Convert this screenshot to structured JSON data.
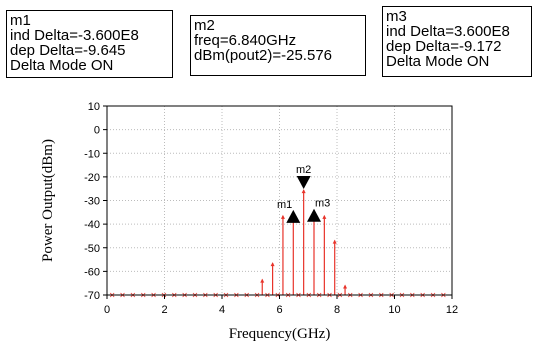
{
  "markers": [
    {
      "id": "m1",
      "lines": [
        "ind Delta=-3.600E8",
        "dep Delta=-9.645",
        "Delta Mode ON"
      ],
      "x": 6.48,
      "y": -35.22
    },
    {
      "id": "m2",
      "lines": [
        "freq=6.840GHz",
        "dBm(pout2)=-25.576"
      ],
      "x": 6.84,
      "y": -25.576
    },
    {
      "id": "m3",
      "lines": [
        "ind Delta=3.600E8",
        "dep Delta=-9.172",
        "Delta Mode ON"
      ],
      "x": 7.2,
      "y": -34.748
    }
  ],
  "chart_data": {
    "type": "bar",
    "title": "",
    "xlabel": "Frequency(GHz)",
    "ylabel": "Power Output(dBm)",
    "xlim": [
      0,
      12
    ],
    "ylim": [
      -70,
      10
    ],
    "x_ticks": [
      0,
      2,
      4,
      6,
      8,
      10,
      12
    ],
    "y_ticks": [
      10,
      0,
      -10,
      -20,
      -30,
      -40,
      -50,
      -60,
      -70
    ],
    "grid": true,
    "color": "#e8332a",
    "series": [
      {
        "x": [
          5.4,
          5.76,
          6.12,
          6.48,
          6.84,
          7.2,
          7.56,
          7.92,
          8.28
        ],
        "values": [
          -63.5,
          -56.5,
          -36.5,
          -35.2,
          -25.6,
          -34.7,
          -36.5,
          -47.0,
          -66.0
        ]
      }
    ],
    "floor_value": -70
  }
}
